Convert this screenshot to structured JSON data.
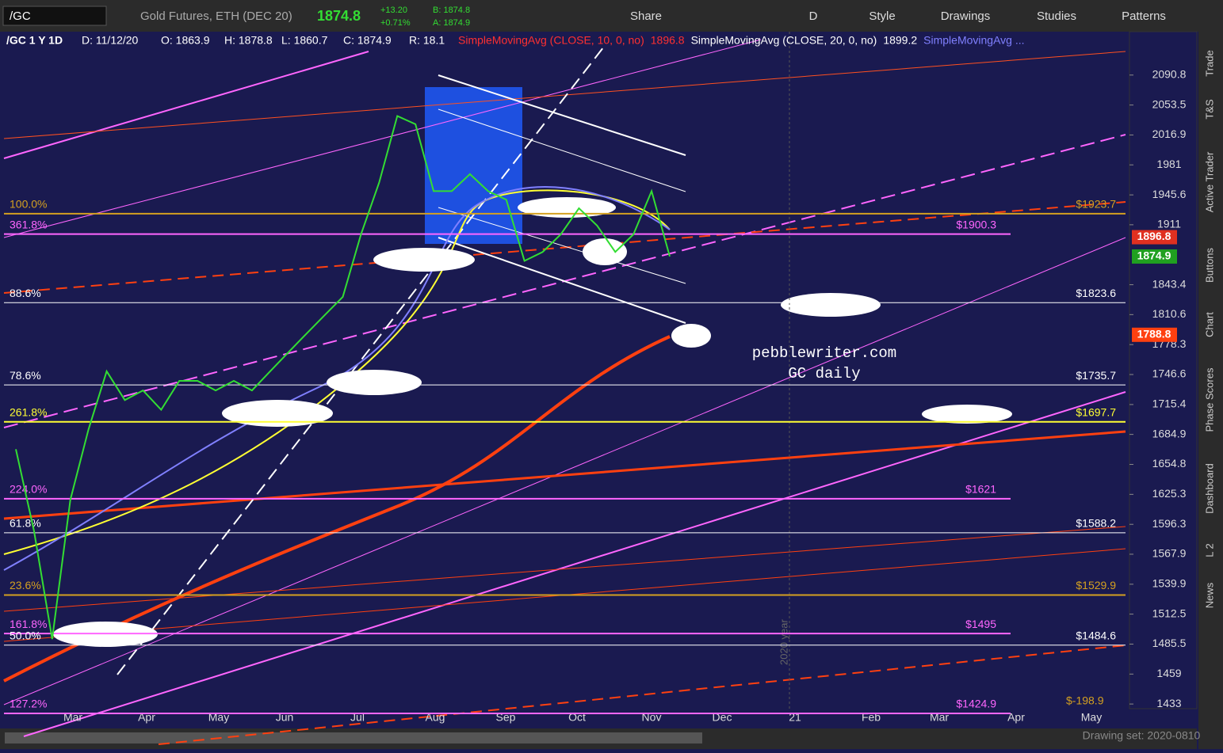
{
  "toolbar": {
    "symbol": "/GC",
    "description": "Gold Futures, ETH (DEC 20)",
    "last": "1874.8",
    "change": "+13.20",
    "change_pct": "+0.71%",
    "bid": "B: 1874.8",
    "ask": "A: 1874.9",
    "buttons": [
      "Share",
      "D",
      "Style",
      "Drawings",
      "Studies",
      "Patterns"
    ]
  },
  "chart_header": [
    "/GC 1 Y 1D",
    "D: 11/12/20",
    "O: 1863.9",
    "H: 1878.8",
    "L: 1860.7",
    "C: 1874.9",
    "R: 18.1"
  ],
  "studies": [
    {
      "name": "SimpleMovingAvg (CLOSE, 10, 0, no)",
      "value": "1896.8",
      "color": "#ff3030"
    },
    {
      "name": "SimpleMovingAvg (CLOSE, 20, 0, no)",
      "value": "1899.2",
      "color": "#ffffff"
    },
    {
      "name": "SimpleMovingAvg ...",
      "color": "#8080ff"
    }
  ],
  "side_tabs": [
    "Trade",
    "T&S",
    "Active Trader",
    "Buttons",
    "Chart",
    "Phase Scores",
    "Dashboard",
    "L 2",
    "News"
  ],
  "chart_data": {
    "type": "line",
    "log_scale": true,
    "ylim": [
      1429,
      2146
    ],
    "yticks": [
      2090.8,
      2053.5,
      2016.9,
      1981,
      1945.6,
      1911,
      1843.4,
      1810.6,
      1778.3,
      1746.6,
      1715.4,
      1684.9,
      1654.8,
      1625.3,
      1596.3,
      1567.9,
      1539.9,
      1512.5,
      1485.5,
      1459,
      1433
    ],
    "x_labels": [
      "Mar",
      "Apr",
      "May",
      "Jun",
      "Jul",
      "Aug",
      "Sep",
      "Oct",
      "Nov",
      "Dec",
      "21",
      "Feb",
      "Mar",
      "Apr",
      "May"
    ],
    "series": [
      {
        "color": "#33dd33",
        "values": [
          1670,
          1590,
          1490,
          1620,
          1690,
          1750,
          1720,
          1730,
          1710,
          1740,
          1740,
          1730,
          1740,
          1730,
          1750,
          1770,
          1790,
          1810,
          1830,
          1900,
          1960,
          2040,
          2030,
          1950,
          1950,
          1970,
          1950,
          1940,
          1870,
          1880,
          1900,
          1930,
          1910,
          1880,
          1900,
          1950,
          1875
        ]
      }
    ],
    "price_badges": [
      {
        "value": 1896.8,
        "color": "#e03020"
      },
      {
        "value": 1874.9,
        "color": "#20a020"
      },
      {
        "value": 1788.8,
        "color": "#ff4010"
      }
    ],
    "levels": [
      {
        "pct": "100.0%",
        "label": "$1923.7",
        "value": 1923.7,
        "color": "#d4a020"
      },
      {
        "pct": "361.8%",
        "label": "$1900.3",
        "value": 1900.3,
        "color": "#ff66ff"
      },
      {
        "pct": "88.6%",
        "label": "$1823.6",
        "value": 1823.6,
        "color": "#ffffff"
      },
      {
        "pct": "78.6%",
        "label": "$1735.7",
        "value": 1735.7,
        "color": "#ffffff"
      },
      {
        "pct": "261.8%",
        "label": "$1697.7",
        "value": 1697.7,
        "color": "#ffff33"
      },
      {
        "pct": "224.0%",
        "label": "$1621",
        "value": 1621,
        "color": "#ff66ff"
      },
      {
        "pct": "61.8%",
        "label": "$1588.2",
        "value": 1588.2,
        "color": "#ffffff"
      },
      {
        "pct": "23.6%",
        "label": "$1529.9",
        "value": 1529.9,
        "color": "#d4a020"
      },
      {
        "pct": "161.8%",
        "label": "$1495",
        "value": 1495,
        "color": "#ff66ff"
      },
      {
        "pct": "50.0%",
        "label": "$1484.6",
        "value": 1484.6,
        "color": "#ffffff"
      },
      {
        "pct": "127.2%",
        "label": "$1424.9",
        "value": 1424.9,
        "color": "#ff66ff"
      }
    ],
    "extra_label": "$-198.9",
    "watermark": [
      "pebblewriter.com",
      "GC daily"
    ],
    "year_marker": "2020 year"
  },
  "footer": "Drawing set: 2020-0810"
}
